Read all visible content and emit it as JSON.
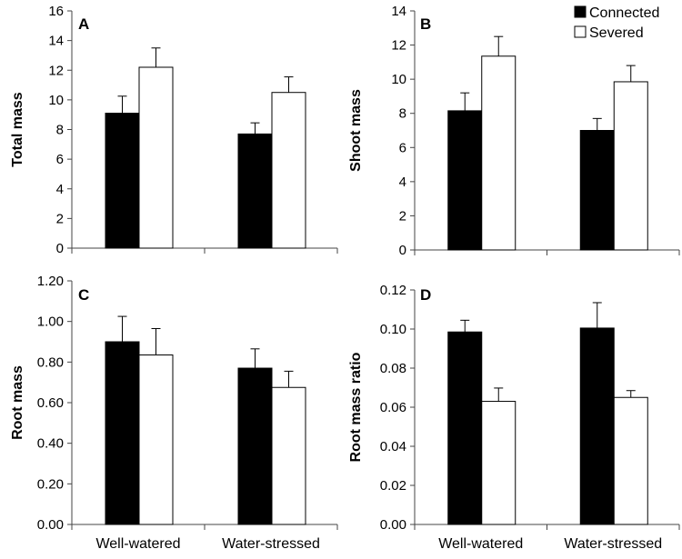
{
  "legend": {
    "placement": "top-right",
    "items": [
      {
        "name": "Connected",
        "color": "#000000"
      },
      {
        "name": "Severed",
        "color": "#ffffff"
      }
    ]
  },
  "chart_data": [
    {
      "type": "bar",
      "panel": "A",
      "ylabel": "Total mass",
      "categories": [
        "Well-watered",
        "Water-stressed"
      ],
      "ylim": [
        0,
        16
      ],
      "yticks": [
        0,
        2,
        4,
        6,
        8,
        10,
        12,
        14,
        16
      ],
      "ytick_labels": [
        "0",
        "2",
        "4",
        "6",
        "8",
        "10",
        "12",
        "14",
        "16"
      ],
      "show_category_labels": false,
      "series": [
        {
          "name": "Connected",
          "color": "#000000",
          "values": [
            9.1,
            7.7
          ],
          "errors": [
            1.15,
            0.75
          ]
        },
        {
          "name": "Severed",
          "color": "#ffffff",
          "values": [
            12.2,
            10.5
          ],
          "errors": [
            1.3,
            1.05
          ]
        }
      ]
    },
    {
      "type": "bar",
      "panel": "B",
      "ylabel": "Shoot mass",
      "categories": [
        "Well-watered",
        "Water-stressed"
      ],
      "ylim": [
        0,
        14
      ],
      "yticks": [
        0,
        2,
        4,
        6,
        8,
        10,
        12,
        14
      ],
      "ytick_labels": [
        "0",
        "2",
        "4",
        "6",
        "8",
        "10",
        "12",
        "14"
      ],
      "show_category_labels": false,
      "series": [
        {
          "name": "Connected",
          "color": "#000000",
          "values": [
            8.15,
            7.0
          ],
          "errors": [
            1.05,
            0.7
          ]
        },
        {
          "name": "Severed",
          "color": "#ffffff",
          "values": [
            11.35,
            9.85
          ],
          "errors": [
            1.15,
            0.95
          ]
        }
      ]
    },
    {
      "type": "bar",
      "panel": "C",
      "ylabel": "Root mass",
      "categories": [
        "Well-watered",
        "Water-stressed"
      ],
      "ylim": [
        0,
        1.2
      ],
      "yticks": [
        0,
        0.2,
        0.4,
        0.6,
        0.8,
        1.0,
        1.2
      ],
      "ytick_labels": [
        "0.00",
        "0.20",
        "0.40",
        "0.60",
        "0.80",
        "1.00",
        "1.20"
      ],
      "show_category_labels": true,
      "series": [
        {
          "name": "Connected",
          "color": "#000000",
          "values": [
            0.9,
            0.77
          ],
          "errors": [
            0.125,
            0.095
          ]
        },
        {
          "name": "Severed",
          "color": "#ffffff",
          "values": [
            0.835,
            0.675
          ],
          "errors": [
            0.13,
            0.08
          ]
        }
      ]
    },
    {
      "type": "bar",
      "panel": "D",
      "ylabel": "Root mass ratio",
      "categories": [
        "Well-watered",
        "Water-stressed"
      ],
      "ylim": [
        0,
        0.12
      ],
      "yticks": [
        0,
        0.02,
        0.04,
        0.06,
        0.08,
        0.1,
        0.12
      ],
      "ytick_labels": [
        "0.00",
        "0.02",
        "0.04",
        "0.06",
        "0.08",
        "0.10",
        "0.12"
      ],
      "show_category_labels": true,
      "series": [
        {
          "name": "Connected",
          "color": "#000000",
          "values": [
            0.0985,
            0.1005
          ],
          "errors": [
            0.006,
            0.013
          ]
        },
        {
          "name": "Severed",
          "color": "#ffffff",
          "values": [
            0.063,
            0.065
          ],
          "errors": [
            0.0068,
            0.0035
          ]
        }
      ]
    }
  ]
}
